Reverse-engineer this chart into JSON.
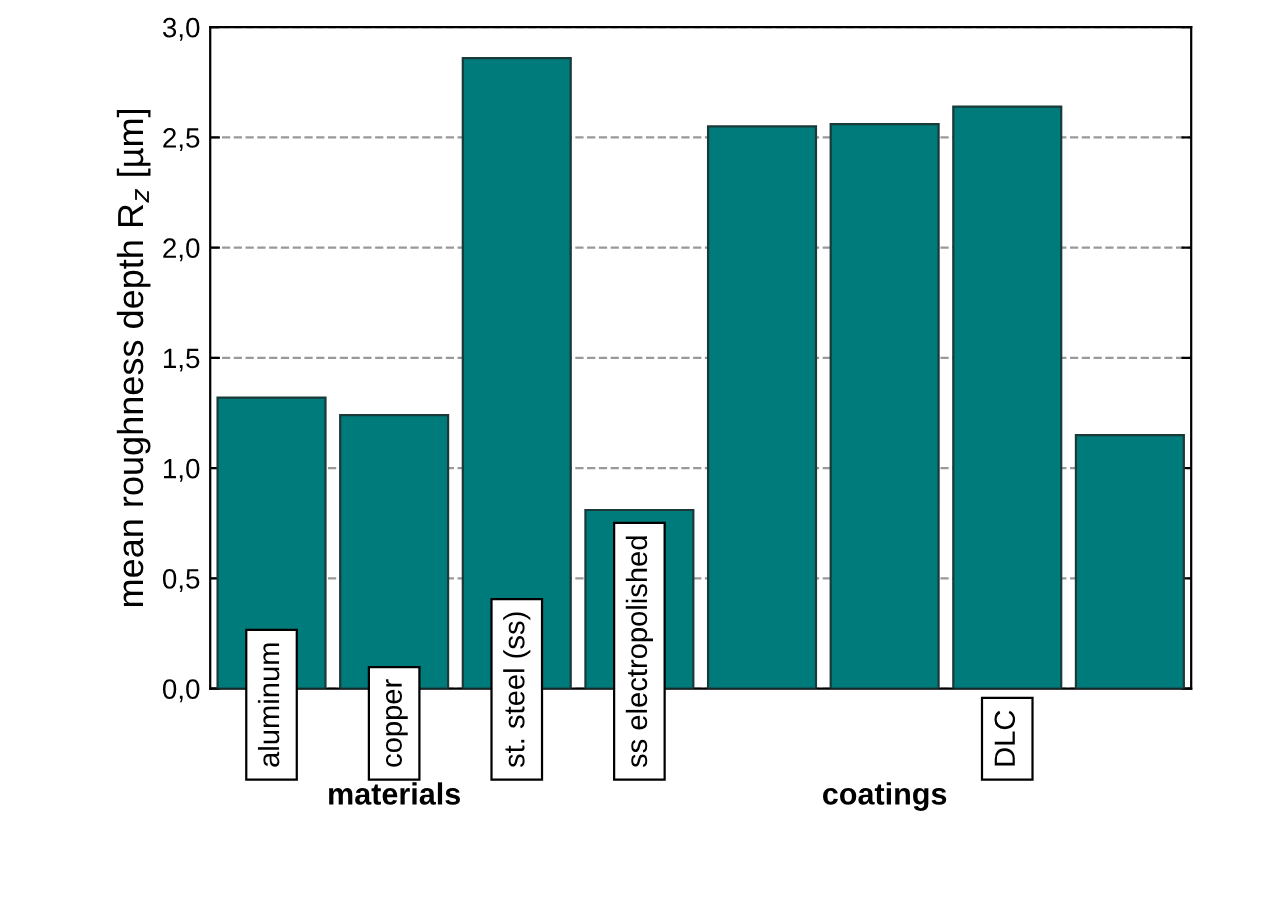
{
  "chart_data": {
    "type": "bar",
    "ylabel": "mean roughness depth R$_{z}$ [µm]",
    "categories": [
      "aluminum",
      "copper",
      "st. steel (ss)",
      "ss electropolished",
      null,
      null,
      "DLC",
      null
    ],
    "values": [
      1.32,
      1.24,
      2.86,
      0.81,
      2.55,
      2.56,
      2.64,
      1.15
    ],
    "color": "#007b7b",
    "ylim": [
      0,
      3.0
    ],
    "yticks": [
      {
        "value": 0,
        "label": "0,0"
      },
      {
        "value": 0.5,
        "label": "0,5"
      },
      {
        "value": 1.0,
        "label": "1,0"
      },
      {
        "value": 1.5,
        "label": "1,5"
      },
      {
        "value": 2.0,
        "label": "2,0"
      },
      {
        "value": 2.5,
        "label": "2,5"
      },
      {
        "value": 3.0,
        "label": "3,0"
      }
    ],
    "grid": "y",
    "annotations": [
      "materials",
      "coatings"
    ]
  }
}
